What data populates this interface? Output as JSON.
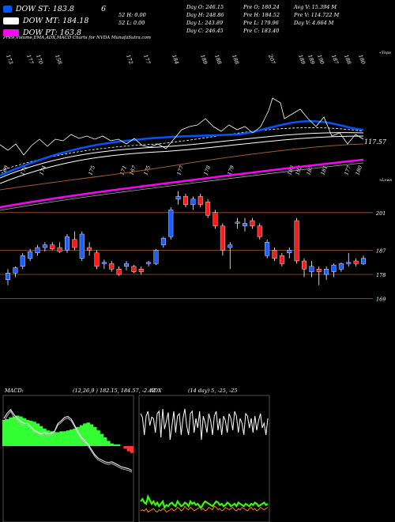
{
  "legend": {
    "items": [
      {
        "label": "DOW ST: 183.8",
        "color": "#0055ff"
      },
      {
        "label": "DOW MT: 184.18",
        "color": "#ffffff"
      },
      {
        "label": "DOW PT: 163.8",
        "color": "#ff00ff"
      }
    ],
    "mid_value": "6"
  },
  "info": {
    "col1": [
      "52 H: 0.00",
      "52 L: 0.00"
    ],
    "col2": [
      "Day O: 246.15",
      "Day H: 248.86",
      "Day L: 243.89",
      "Day C: 246.45"
    ],
    "col3": [
      "Pre O: 180.24",
      "Pre H: 184.52",
      "Pre L: 179.96",
      "Pre C: 183.40"
    ],
    "col4": [
      "Avg V: 15.394 M",
      "Pre V: 114.722 M",
      "Day V: 4.664 M"
    ]
  },
  "header_text": "Price,Volume,EMA,ADX,MACD Charts for NVDA MunafaSutra.com",
  "price_panel": {
    "top_numbers": [
      "173",
      "177",
      "170",
      "158",
      "172",
      "177",
      "184",
      "189",
      "188",
      "188",
      "207",
      "189",
      "189",
      "190",
      "187",
      "188",
      "180"
    ],
    "top_right_label": "«Tops",
    "bottom_numbers": [
      "169",
      "171",
      "174",
      "175",
      "171",
      "167",
      "175",
      "177",
      "178",
      "179",
      "188",
      "193",
      "187",
      "181",
      "177",
      "180"
    ],
    "bottom_right_label": "«Lows",
    "ema_label": "117.57",
    "levels": [
      {
        "value": 201,
        "label": "201"
      },
      {
        "value": 187,
        "label": "187"
      },
      {
        "value": 178,
        "label": "178"
      },
      {
        "value": 169,
        "label": "169"
      }
    ]
  },
  "macd": {
    "label": "MACD:",
    "values": "(12,26,9 ) 182.15, 184.57, -2.42"
  },
  "adx": {
    "label": "ADX",
    "values": "(14 day) 5, -25, -25"
  },
  "colors": {
    "up": "#1a5fff",
    "down": "#ff1a1a",
    "ema_fast": "#0055ff",
    "ema_slow": "#ff00ff",
    "ema_mid": "#a05a2c",
    "macd_hist": "#33ff33",
    "adx_plus": "#33ff00",
    "adx_minus": "#ff8800"
  },
  "chart_data": [
    {
      "type": "candlestick",
      "title": "",
      "ylim": [
        163,
        213
      ],
      "candles": [
        {
          "o": 176.0,
          "h": 180.0,
          "l": 174.0,
          "c": 178.5
        },
        {
          "o": 178.5,
          "h": 181.0,
          "l": 177.0,
          "c": 180.5
        },
        {
          "o": 181.0,
          "h": 186.0,
          "l": 180.0,
          "c": 185.0
        },
        {
          "o": 184.0,
          "h": 187.5,
          "l": 183.0,
          "c": 186.5
        },
        {
          "o": 186.0,
          "h": 189.0,
          "l": 185.0,
          "c": 188.0
        },
        {
          "o": 188.0,
          "h": 190.0,
          "l": 186.5,
          "c": 189.0
        },
        {
          "o": 189.0,
          "h": 190.0,
          "l": 187.0,
          "c": 187.5
        },
        {
          "o": 188.0,
          "h": 190.0,
          "l": 186.0,
          "c": 186.5
        },
        {
          "o": 187.0,
          "h": 193.0,
          "l": 186.0,
          "c": 192.0
        },
        {
          "o": 191.0,
          "h": 194.0,
          "l": 187.0,
          "c": 188.0
        },
        {
          "o": 184.0,
          "h": 194.0,
          "l": 183.0,
          "c": 193.0
        },
        {
          "o": 188.0,
          "h": 190.0,
          "l": 185.0,
          "c": 187.0
        },
        {
          "o": 186.0,
          "h": 187.0,
          "l": 180.0,
          "c": 181.0
        },
        {
          "o": 182.0,
          "h": 183.5,
          "l": 180.0,
          "c": 182.5
        },
        {
          "o": 182.0,
          "h": 183.0,
          "l": 179.0,
          "c": 180.0
        },
        {
          "o": 180.0,
          "h": 181.0,
          "l": 177.5,
          "c": 178.0
        },
        {
          "o": 181.0,
          "h": 183.0,
          "l": 179.5,
          "c": 182.0
        },
        {
          "o": 181.0,
          "h": 181.5,
          "l": 178.5,
          "c": 179.0
        },
        {
          "o": 180.0,
          "h": 181.0,
          "l": 178.0,
          "c": 179.0
        },
        {
          "o": 182.0,
          "h": 183.0,
          "l": 181.0,
          "c": 182.5
        },
        {
          "o": 182.0,
          "h": 187.5,
          "l": 181.5,
          "c": 187.0
        },
        {
          "o": 189.0,
          "h": 192.0,
          "l": 188.0,
          "c": 191.5
        },
        {
          "o": 192.0,
          "h": 203.0,
          "l": 191.0,
          "c": 202.0
        },
        {
          "o": 206.0,
          "h": 209.0,
          "l": 204.0,
          "c": 207.0
        },
        {
          "o": 207.0,
          "h": 208.0,
          "l": 203.0,
          "c": 204.0
        },
        {
          "o": 204.0,
          "h": 207.0,
          "l": 202.0,
          "c": 206.0
        },
        {
          "o": 207.0,
          "h": 208.0,
          "l": 203.0,
          "c": 204.0
        },
        {
          "o": 205.0,
          "h": 206.0,
          "l": 199.0,
          "c": 200.0
        },
        {
          "o": 201.0,
          "h": 202.0,
          "l": 195.0,
          "c": 196.0
        },
        {
          "o": 196.0,
          "h": 197.0,
          "l": 185.0,
          "c": 187.0
        },
        {
          "o": 188.0,
          "h": 190.0,
          "l": 180.0,
          "c": 189.0
        },
        {
          "o": 197.0,
          "h": 199.0,
          "l": 195.0,
          "c": 197.5
        },
        {
          "o": 196.0,
          "h": 199.0,
          "l": 194.0,
          "c": 197.0
        },
        {
          "o": 198.0,
          "h": 199.0,
          "l": 195.0,
          "c": 196.0
        },
        {
          "o": 196.0,
          "h": 197.0,
          "l": 191.0,
          "c": 192.0
        },
        {
          "o": 185.0,
          "h": 191.0,
          "l": 184.0,
          "c": 190.0
        },
        {
          "o": 187.0,
          "h": 188.0,
          "l": 183.0,
          "c": 184.0
        },
        {
          "o": 185.0,
          "h": 186.0,
          "l": 181.0,
          "c": 182.0
        },
        {
          "o": 186.0,
          "h": 188.0,
          "l": 184.0,
          "c": 187.0
        },
        {
          "o": 198.0,
          "h": 199.0,
          "l": 182.0,
          "c": 183.0
        },
        {
          "o": 183.0,
          "h": 184.0,
          "l": 177.0,
          "c": 180.0
        },
        {
          "o": 179.0,
          "h": 183.0,
          "l": 177.0,
          "c": 181.0
        },
        {
          "o": 180.0,
          "h": 181.0,
          "l": 174.0,
          "c": 179.0
        },
        {
          "o": 178.0,
          "h": 181.0,
          "l": 176.0,
          "c": 180.0
        },
        {
          "o": 179.0,
          "h": 182.0,
          "l": 177.0,
          "c": 181.5
        },
        {
          "o": 180.0,
          "h": 182.5,
          "l": 179.0,
          "c": 182.0
        },
        {
          "o": 182.0,
          "h": 186.0,
          "l": 181.0,
          "c": 182.5
        },
        {
          "o": 183.0,
          "h": 184.0,
          "l": 181.0,
          "c": 182.0
        },
        {
          "o": 182.0,
          "h": 185.0,
          "l": 181.5,
          "c": 184.0
        }
      ]
    },
    {
      "type": "area",
      "title": "",
      "series": [
        {
          "values": [
            3.0,
            3.1,
            3.3,
            3.4,
            3.5,
            3.4,
            3.2,
            3.0,
            2.9,
            2.8,
            2.6,
            2.3,
            2.0,
            1.8,
            1.7,
            1.6,
            1.6,
            1.7,
            1.7,
            1.8,
            1.9,
            2.0,
            2.2,
            2.4,
            2.6,
            2.7,
            2.5,
            2.2,
            1.8,
            1.4,
            1.0,
            0.6,
            0.3,
            0.2,
            0.2,
            0.0,
            -0.3,
            -0.6,
            -0.8
          ]
        },
        {
          "values": [
            3.2,
            3.8,
            4.2,
            3.6,
            3.2,
            2.8,
            2.6,
            2.6,
            2.2,
            1.8,
            1.6,
            1.4,
            1.6,
            1.4,
            1.5,
            1.7,
            2.6,
            2.9,
            3.3,
            3.4,
            3.1,
            2.4,
            1.6,
            1.0,
            0.6,
            0.2,
            -0.4,
            -1.0,
            -1.4,
            -1.6,
            -1.8,
            -1.9,
            -1.8,
            -2.0,
            -2.2,
            -2.4,
            -2.5,
            -2.6,
            -2.8
          ]
        },
        {
          "values": [
            2.8,
            3.5,
            4.0,
            3.3,
            2.9,
            2.5,
            2.4,
            2.4,
            2.0,
            1.6,
            1.5,
            1.2,
            1.4,
            1.2,
            1.3,
            1.6,
            2.4,
            2.7,
            3.1,
            3.2,
            2.9,
            2.2,
            1.4,
            0.8,
            0.4,
            0.0,
            -0.6,
            -1.2,
            -1.6,
            -1.8,
            -2.0,
            -2.1,
            -2.0,
            -2.2,
            -2.4,
            -2.6,
            -2.7,
            -2.8,
            -3.0
          ]
        }
      ]
    },
    {
      "type": "line",
      "title": "",
      "series": [
        {
          "values": [
            88,
            85,
            70,
            86,
            90,
            78,
            85,
            84,
            72,
            88,
            90,
            68,
            92,
            75,
            82,
            89,
            66,
            78,
            90,
            72,
            86,
            88,
            70,
            84,
            92,
            78,
            70,
            88,
            90,
            72,
            84,
            76,
            90,
            66,
            86,
            80,
            72,
            88,
            82,
            70,
            86,
            90,
            74,
            84,
            70,
            86,
            82,
            72,
            88,
            84,
            74,
            90,
            86,
            72,
            84,
            80,
            70,
            88,
            86,
            76,
            84,
            72,
            86,
            74,
            82,
            88,
            76,
            80,
            70,
            84
          ]
        },
        {
          "values": [
            14,
            16,
            13,
            12,
            18,
            15,
            12,
            14,
            11,
            13,
            10,
            12,
            14,
            9,
            11,
            10,
            12,
            13,
            11,
            10,
            14,
            12,
            10,
            11,
            13,
            12,
            10,
            14,
            12,
            13,
            11,
            12,
            10,
            9,
            12,
            14,
            13,
            12,
            11,
            10,
            12,
            14,
            13,
            11,
            12,
            10,
            11,
            13,
            12,
            10,
            11,
            12,
            10,
            13,
            12,
            11,
            10,
            12,
            11,
            10,
            12,
            11,
            13,
            12,
            10,
            11,
            12,
            13,
            11,
            12
          ]
        },
        {
          "values": [
            6,
            7,
            6,
            8,
            5,
            6,
            7,
            8,
            6,
            5,
            7,
            6,
            8,
            7,
            5,
            6,
            7,
            8,
            6,
            7,
            9,
            8,
            6,
            7,
            10,
            8,
            7,
            9,
            8,
            6,
            7,
            8,
            9,
            7,
            8,
            6,
            7,
            9,
            8,
            7,
            10,
            9,
            7,
            8,
            6,
            7,
            9,
            8,
            7,
            8,
            9,
            7,
            6,
            8,
            7,
            9,
            8,
            7,
            6,
            8,
            9,
            7,
            8,
            6,
            7,
            9,
            8,
            7,
            8,
            9
          ]
        }
      ]
    }
  ]
}
